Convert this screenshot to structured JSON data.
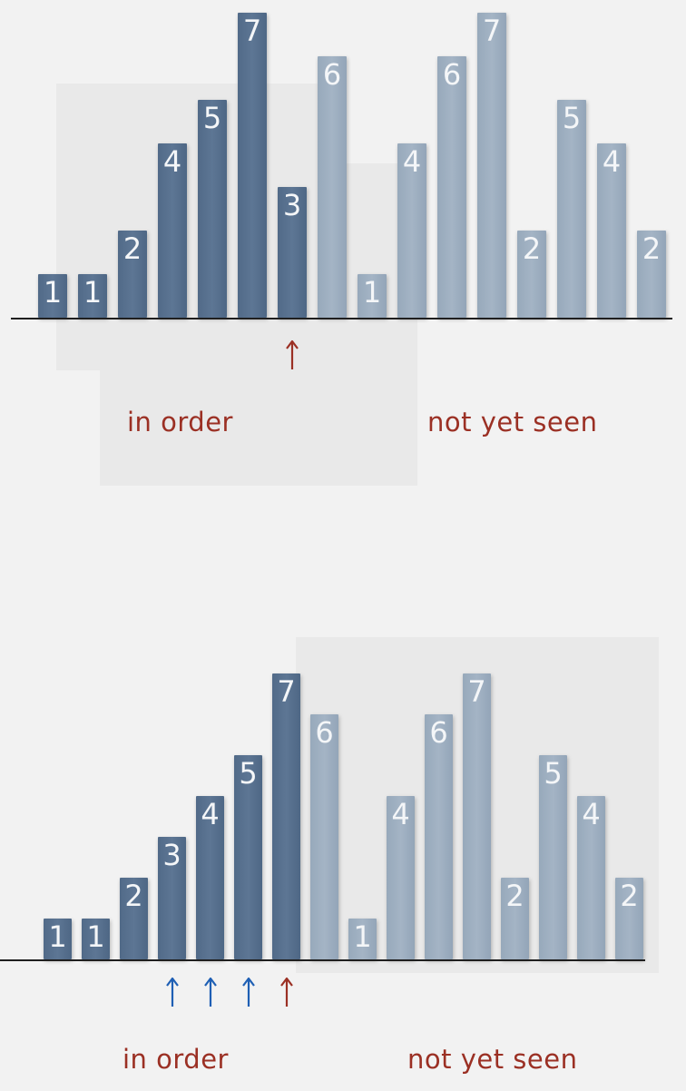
{
  "colors": {
    "in_order_bar": "#566f8d",
    "not_seen_bar": "#9dafc1",
    "current_arrow": "#9b3024",
    "compare_arrow": "#1e5fb4",
    "caption": "#9b3024"
  },
  "panels": [
    {
      "in_order_count": 7,
      "values": [
        1,
        1,
        2,
        4,
        5,
        7,
        3,
        6,
        1,
        4,
        6,
        7,
        2,
        5,
        4,
        2
      ],
      "arrows": [
        {
          "index": 6,
          "color": "current_arrow"
        }
      ],
      "captions": {
        "left": "in order",
        "right": "not yet seen"
      }
    },
    {
      "in_order_count": 7,
      "values": [
        1,
        1,
        2,
        3,
        4,
        5,
        7,
        6,
        1,
        4,
        6,
        7,
        2,
        5,
        4,
        2
      ],
      "arrows": [
        {
          "index": 3,
          "color": "compare_arrow"
        },
        {
          "index": 4,
          "color": "compare_arrow"
        },
        {
          "index": 5,
          "color": "compare_arrow"
        },
        {
          "index": 6,
          "color": "current_arrow"
        }
      ],
      "captions": {
        "left": "in order",
        "right": "not yet seen"
      }
    }
  ]
}
